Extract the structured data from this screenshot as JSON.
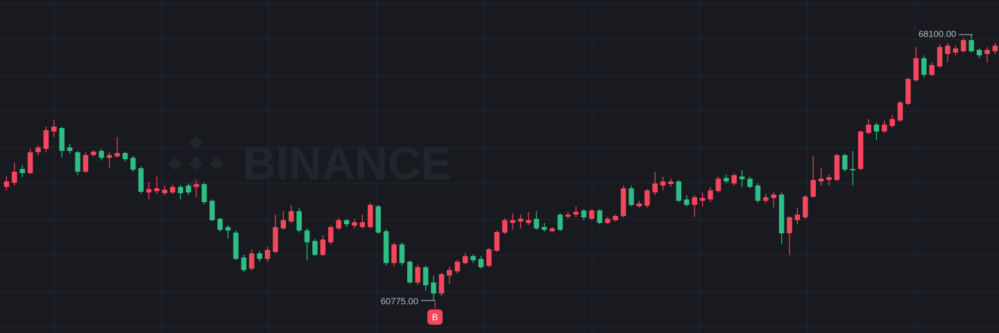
{
  "chart_data": {
    "type": "candlestick",
    "watermark": "BINANCE",
    "up_color": "#f6465d",
    "down_color": "#2ebd85",
    "ohlc": [
      [
        63903,
        64189,
        63808,
        64056
      ],
      [
        64018,
        64571,
        63941,
        64323
      ],
      [
        64399,
        64514,
        64170,
        64285
      ],
      [
        64285,
        64953,
        64247,
        64857
      ],
      [
        64857,
        65048,
        64762,
        64991
      ],
      [
        64953,
        65563,
        64857,
        65468
      ],
      [
        65430,
        65754,
        65277,
        65563
      ],
      [
        65525,
        65563,
        64705,
        64895
      ],
      [
        64991,
        65086,
        64819,
        64895
      ],
      [
        64857,
        64895,
        64228,
        64323
      ],
      [
        64323,
        64857,
        64285,
        64781
      ],
      [
        64781,
        64914,
        64743,
        64876
      ],
      [
        64895,
        64953,
        64628,
        64705
      ],
      [
        64705,
        64857,
        64438,
        64781
      ],
      [
        64743,
        65277,
        64705,
        64838
      ],
      [
        64838,
        64876,
        64609,
        64667
      ],
      [
        64705,
        64762,
        64323,
        64380
      ],
      [
        64419,
        64476,
        63713,
        63770
      ],
      [
        63751,
        64037,
        63560,
        63846
      ],
      [
        63789,
        64189,
        63713,
        63865
      ],
      [
        63732,
        63941,
        63675,
        63827
      ],
      [
        63751,
        63961,
        63713,
        63903
      ],
      [
        63903,
        63961,
        63560,
        63732
      ],
      [
        63941,
        63999,
        63675,
        63751
      ],
      [
        63903,
        64056,
        63617,
        63980
      ],
      [
        63980,
        64037,
        63426,
        63484
      ],
      [
        63522,
        63560,
        62950,
        62988
      ],
      [
        63026,
        63064,
        62663,
        62721
      ],
      [
        62797,
        62854,
        62473,
        62702
      ],
      [
        62644,
        62702,
        61881,
        61920
      ],
      [
        61958,
        62034,
        61557,
        61614
      ],
      [
        61652,
        62187,
        61595,
        62072
      ],
      [
        62072,
        62148,
        61843,
        61920
      ],
      [
        61920,
        62263,
        61843,
        62168
      ],
      [
        62110,
        63140,
        62072,
        62797
      ],
      [
        62759,
        63236,
        62721,
        62988
      ],
      [
        62950,
        63407,
        62911,
        63236
      ],
      [
        63236,
        63331,
        62644,
        62702
      ],
      [
        62702,
        62759,
        61881,
        62377
      ],
      [
        62415,
        62473,
        61996,
        62034
      ],
      [
        62034,
        62568,
        61996,
        62454
      ],
      [
        62377,
        62854,
        62320,
        62797
      ],
      [
        62759,
        63045,
        62721,
        62988
      ],
      [
        62988,
        63026,
        62797,
        62873
      ],
      [
        62835,
        63026,
        62759,
        62930
      ],
      [
        62797,
        63140,
        62759,
        62930
      ],
      [
        62797,
        63465,
        62759,
        63407
      ],
      [
        63369,
        63407,
        62606,
        62644
      ],
      [
        62682,
        62740,
        61748,
        61805
      ],
      [
        61805,
        62377,
        61710,
        62320
      ],
      [
        62320,
        62377,
        61748,
        61805
      ],
      [
        61843,
        61881,
        61233,
        61271
      ],
      [
        61271,
        61767,
        61195,
        61691
      ],
      [
        61691,
        61748,
        61042,
        61195
      ],
      [
        61271,
        61462,
        60775,
        60966
      ],
      [
        60966,
        61538,
        60889,
        61500
      ],
      [
        61462,
        61710,
        61233,
        61614
      ],
      [
        61576,
        61900,
        61519,
        61843
      ],
      [
        61805,
        62091,
        61767,
        61996
      ],
      [
        61996,
        62053,
        61805,
        61881
      ],
      [
        61920,
        61996,
        61652,
        61691
      ],
      [
        61729,
        62225,
        61691,
        62187
      ],
      [
        62148,
        62702,
        62110,
        62663
      ],
      [
        62644,
        63045,
        62606,
        62988
      ],
      [
        62911,
        63178,
        62721,
        62988
      ],
      [
        62950,
        63140,
        62759,
        63026
      ],
      [
        62911,
        63217,
        62854,
        62988
      ],
      [
        63026,
        63236,
        62721,
        62759
      ],
      [
        62797,
        62911,
        62663,
        62721
      ],
      [
        62682,
        62797,
        62644,
        62759
      ],
      [
        63140,
        63178,
        62682,
        62721
      ],
      [
        63083,
        63217,
        63026,
        63140
      ],
      [
        63140,
        63369,
        63064,
        63217
      ],
      [
        63255,
        63293,
        62988,
        63064
      ],
      [
        63026,
        63293,
        62988,
        63255
      ],
      [
        63255,
        63293,
        62873,
        62911
      ],
      [
        62911,
        63083,
        62873,
        63026
      ],
      [
        62988,
        63140,
        62950,
        63102
      ],
      [
        63102,
        63941,
        63064,
        63865
      ],
      [
        63865,
        63941,
        63369,
        63407
      ],
      [
        63369,
        63522,
        63331,
        63446
      ],
      [
        63388,
        63846,
        63331,
        63808
      ],
      [
        63751,
        64323,
        63675,
        63999
      ],
      [
        63941,
        64189,
        63808,
        64056
      ],
      [
        63980,
        64132,
        63903,
        64056
      ],
      [
        64056,
        64094,
        63484,
        63522
      ],
      [
        63560,
        63675,
        63369,
        63407
      ],
      [
        63407,
        63675,
        63083,
        63617
      ],
      [
        63522,
        63751,
        63369,
        63598
      ],
      [
        63560,
        63903,
        63484,
        63808
      ],
      [
        63789,
        64189,
        63751,
        64132
      ],
      [
        64151,
        64247,
        63999,
        64056
      ],
      [
        63999,
        64285,
        63941,
        64228
      ],
      [
        64189,
        64361,
        63903,
        64113
      ],
      [
        64132,
        64189,
        63865,
        63903
      ],
      [
        63941,
        63999,
        63465,
        63522
      ],
      [
        63522,
        63713,
        63446,
        63617
      ],
      [
        63598,
        63751,
        63331,
        63693
      ],
      [
        63693,
        63751,
        62339,
        62625
      ],
      [
        62625,
        63102,
        62034,
        63064
      ],
      [
        62988,
        63331,
        62873,
        63140
      ],
      [
        63064,
        63675,
        63026,
        63636
      ],
      [
        63636,
        64762,
        63598,
        64094
      ],
      [
        64056,
        64438,
        63941,
        64132
      ],
      [
        64094,
        64247,
        63941,
        64170
      ],
      [
        64094,
        64819,
        64056,
        64781
      ],
      [
        64781,
        64819,
        64323,
        64380
      ],
      [
        64399,
        64895,
        63941,
        64361
      ],
      [
        64399,
        65468,
        64361,
        65430
      ],
      [
        65391,
        65773,
        65353,
        65620
      ],
      [
        65620,
        65677,
        65200,
        65430
      ],
      [
        65430,
        65735,
        65391,
        65620
      ],
      [
        65582,
        65887,
        65544,
        65773
      ],
      [
        65735,
        66269,
        65696,
        66231
      ],
      [
        66192,
        66917,
        66154,
        66879
      ],
      [
        66841,
        67757,
        66803,
        67451
      ],
      [
        67451,
        67528,
        66917,
        66994
      ],
      [
        66994,
        67337,
        66955,
        67261
      ],
      [
        67223,
        67833,
        67184,
        67757
      ],
      [
        67566,
        67871,
        67337,
        67795
      ],
      [
        67604,
        67795,
        67528,
        67719
      ],
      [
        67642,
        68005,
        67604,
        67947
      ],
      [
        67947,
        68100,
        67604,
        67642
      ],
      [
        67680,
        67719,
        67451,
        67528
      ],
      [
        67566,
        67757,
        67337,
        67680
      ],
      [
        67642,
        67871,
        67566,
        67795
      ]
    ],
    "annotations": [
      {
        "value": 68100,
        "label": "68100.00"
      },
      {
        "value": 60775,
        "label": "60775.00"
      }
    ],
    "marker": "B"
  }
}
